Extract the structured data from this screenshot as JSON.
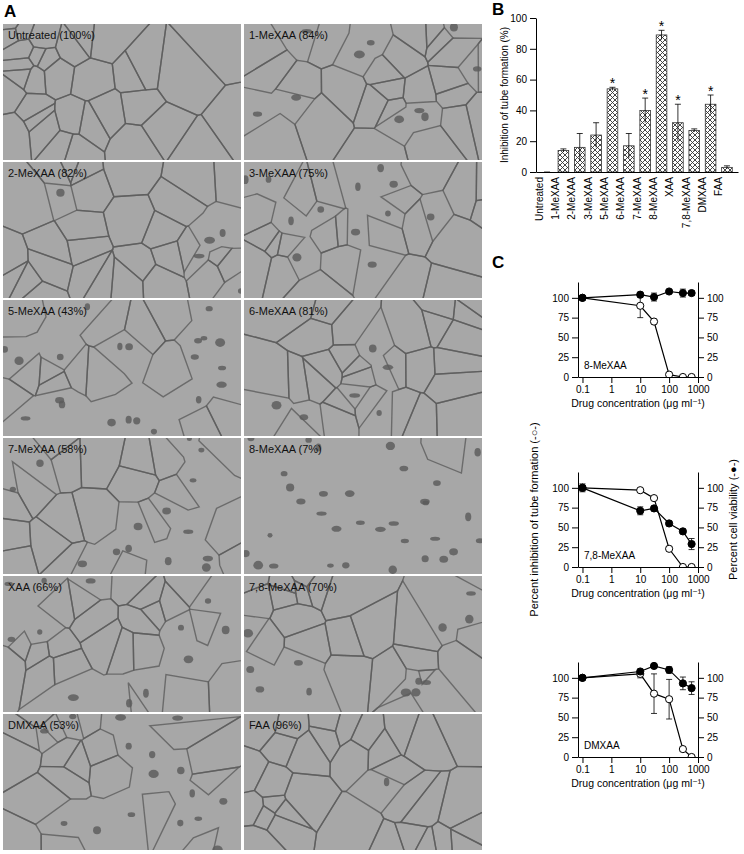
{
  "chart_data": [
    {
      "type": "image_grid",
      "panel": "A",
      "values": [
        100,
        84,
        82,
        75,
        43,
        81,
        58,
        7,
        66,
        70,
        53,
        96
      ],
      "value_labels": [
        "Untreated (100%)",
        "1-MeXAA (84%)",
        "2-MeXAA (82%)",
        "3-MeXAA (75%)",
        "5-MeXAA (43%)",
        "6-MeXAA (81%)",
        "7-MeXAA (58%)",
        "8-MeXAA (7%)",
        "XAA (66%)",
        "7,8-MeXAA (70%)",
        "DMXAA (53%)",
        "FAA (96%)"
      ]
    },
    {
      "type": "bar",
      "panel": "B",
      "categories": [
        "Untreated",
        "1-MeXAA",
        "2-MeXAA",
        "3-MeXAA",
        "5-MeXAA",
        "6-MeXAA",
        "7-MeXAA",
        "8-MeXAA",
        "XAA",
        "7,8-MeXAA",
        "DMXAA",
        "FAA"
      ],
      "values": [
        0,
        14,
        16,
        24,
        54,
        17,
        40,
        89,
        32,
        27,
        44,
        3
      ],
      "errors": [
        0,
        1,
        9,
        8,
        1,
        8,
        8,
        3,
        12,
        1,
        6,
        1
      ],
      "significance": [
        null,
        null,
        null,
        null,
        "*",
        null,
        "*",
        "*",
        "*",
        null,
        "*",
        null
      ],
      "color": "#333333",
      "ylabel": "Inhibition of tube formation (%)",
      "ylim": [
        0,
        100
      ],
      "yticks": [
        0,
        20,
        40,
        60,
        80,
        100
      ]
    },
    {
      "type": "line",
      "panel": "C",
      "title": "8-MeXAA",
      "log": "x",
      "x": [
        0.1,
        10,
        30,
        100,
        300,
        600
      ],
      "xlim": [
        0.07,
        1000
      ],
      "xticks": [
        0.1,
        1,
        10,
        100,
        1000
      ],
      "xlabel": "Drug concentration (μg ml⁻¹)",
      "ylim": [
        0,
        120
      ],
      "yticks": [
        0,
        25,
        50,
        75,
        100
      ],
      "y2lim": [
        0,
        120
      ],
      "y2ticks": [
        0,
        25,
        50,
        75,
        100
      ],
      "series": [
        {
          "values": [
            100,
            90,
            70,
            3,
            0,
            0
          ],
          "errors": [
            0,
            15,
            3,
            1,
            0,
            0
          ],
          "marker": "open",
          "color": "#000000"
        },
        {
          "values": [
            100,
            104,
            101,
            108,
            106,
            106
          ],
          "errors": [
            0,
            3,
            5,
            2,
            5,
            3
          ],
          "marker": "filled",
          "color": "#000000",
          "axis": "y2"
        }
      ]
    },
    {
      "type": "line",
      "title": "7,8-MeXAA",
      "log": "x",
      "x": [
        0.1,
        10,
        30,
        100,
        300,
        600
      ],
      "xlim": [
        0.07,
        1000
      ],
      "xticks": [
        0.1,
        1,
        10,
        100,
        1000
      ],
      "xlabel": "Drug concentration (μg ml⁻¹)",
      "ylabel": "Percent inhibition of tube formation (-○-)",
      "y2label": "Percent cell viability (-●-)",
      "ylim": [
        0,
        120
      ],
      "yticks": [
        0,
        25,
        50,
        75,
        100
      ],
      "y2lim": [
        0,
        120
      ],
      "y2ticks": [
        0,
        25,
        50,
        75,
        100
      ],
      "series": [
        {
          "values": [
            100,
            97,
            87,
            23,
            0,
            0
          ],
          "errors": [
            5,
            2,
            2,
            3,
            0,
            0
          ],
          "marker": "open",
          "color": "#000000"
        },
        {
          "values": [
            100,
            71,
            74,
            55,
            45,
            29
          ],
          "errors": [
            0,
            5,
            3,
            3,
            3,
            7
          ],
          "marker": "filled",
          "color": "#000000",
          "axis": "y2"
        }
      ]
    },
    {
      "type": "line",
      "title": "DMXAA",
      "log": "x",
      "x": [
        0.1,
        10,
        30,
        100,
        300,
        600
      ],
      "xlim": [
        0.07,
        1000
      ],
      "xticks": [
        0.1,
        1,
        10,
        100,
        1000
      ],
      "xlabel": "Drug concentration (μg ml⁻¹)",
      "ylim": [
        0,
        120
      ],
      "yticks": [
        0,
        25,
        50,
        75,
        100
      ],
      "y2lim": [
        0,
        120
      ],
      "y2ticks": [
        0,
        25,
        50,
        75,
        100
      ],
      "series": [
        {
          "values": [
            100,
            105,
            80,
            73,
            10,
            0
          ],
          "errors": [
            0,
            5,
            25,
            25,
            3,
            0
          ],
          "marker": "open",
          "color": "#000000"
        },
        {
          "values": [
            100,
            108,
            115,
            110,
            93,
            87
          ],
          "errors": [
            0,
            3,
            2,
            4,
            8,
            8
          ],
          "marker": "filled",
          "color": "#000000",
          "axis": "y2"
        }
      ]
    }
  ]
}
